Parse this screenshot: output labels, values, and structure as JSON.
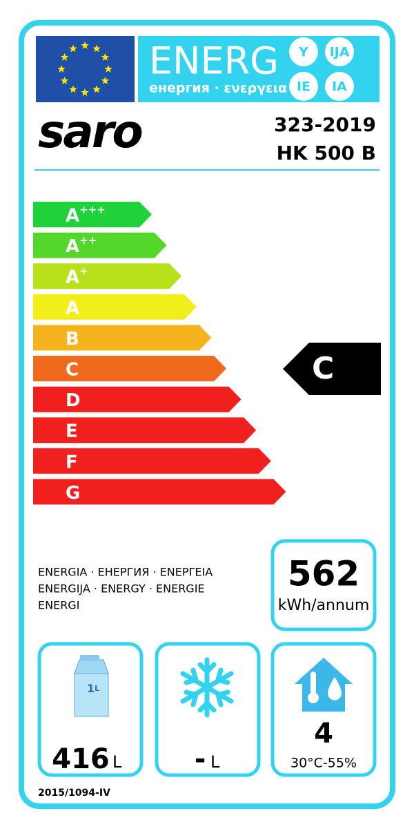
{
  "header": {
    "title": "ENERG",
    "subtitle": "енергия · ενεργεια",
    "languages": [
      "Y",
      "IJA",
      "IE",
      "IA"
    ]
  },
  "supplier": {
    "brand": "saro",
    "model_lines": [
      "323-2019",
      "HK 500 B"
    ]
  },
  "scale": {
    "classes": [
      {
        "letter": "A",
        "sup": "+++",
        "color": "#1fd13a"
      },
      {
        "letter": "A",
        "sup": "++",
        "color": "#54d62a"
      },
      {
        "letter": "A",
        "sup": "+",
        "color": "#b8e11b"
      },
      {
        "letter": "A",
        "color": "#f2ee1a"
      },
      {
        "letter": "B",
        "color": "#f5b41e"
      },
      {
        "letter": "C",
        "color": "#f06a1e"
      },
      {
        "letter": "D",
        "color": "#f0201f"
      },
      {
        "letter": "E",
        "color": "#f0201f"
      },
      {
        "letter": "F",
        "color": "#f0201f"
      },
      {
        "letter": "G",
        "color": "#f0201f"
      }
    ],
    "rating": "C"
  },
  "energy": {
    "caption_lines": [
      "ENERGIA · ЕНЕРГИЯ · ΕΝΕΡΓΕΙΑ",
      "ENERGIJA · ENERGY · ENERGIE",
      "ENERGI"
    ],
    "value": "562",
    "unit": "kWh/annum"
  },
  "volume": {
    "icon_value": "1",
    "icon_unit": "L",
    "value": "416",
    "unit": "L"
  },
  "freezer": {
    "value": "-",
    "unit": "L"
  },
  "climate": {
    "value": "4",
    "range": "30°C-55%"
  },
  "footer": "2015/1094-IV"
}
